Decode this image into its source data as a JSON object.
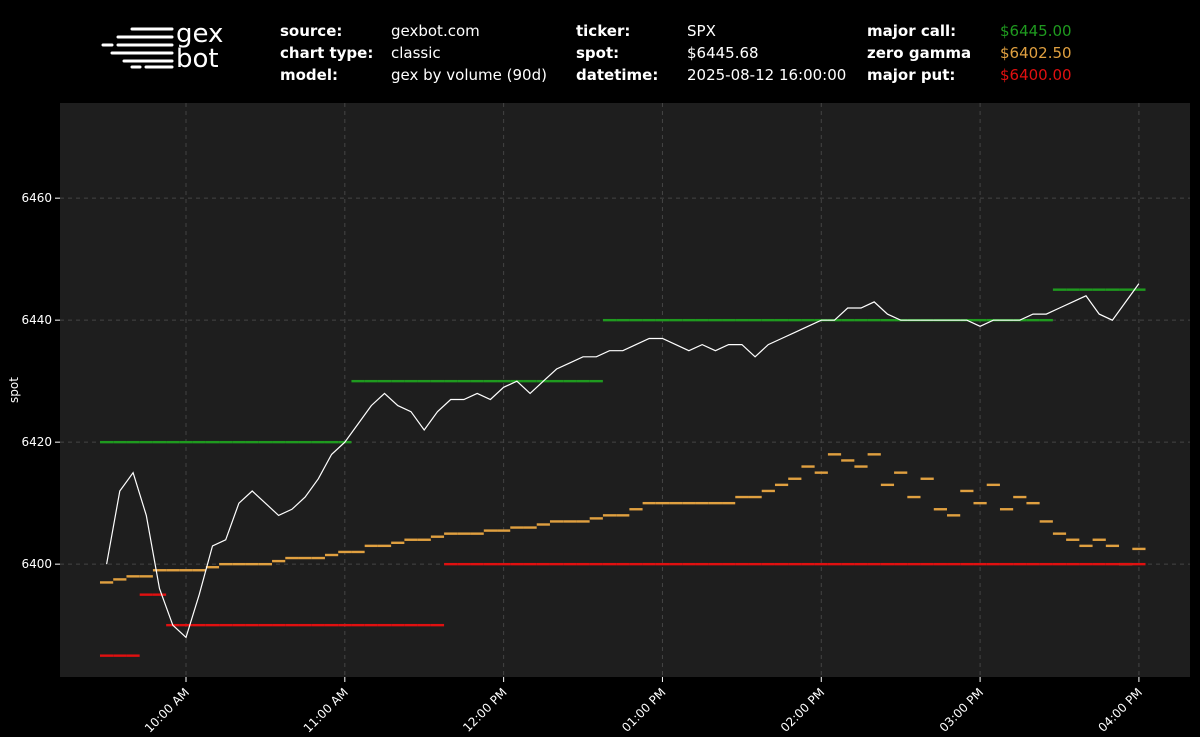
{
  "header": {
    "logo_top": "gex",
    "logo_bottom": "bot",
    "info": [
      {
        "label": "source:",
        "value": "gexbot.com"
      },
      {
        "label": "chart type:",
        "value": "classic"
      },
      {
        "label": "model:",
        "value": "gex by volume (90d)"
      },
      {
        "label": "ticker:",
        "value": "SPX"
      },
      {
        "label": "spot:",
        "value": "$6445.68"
      },
      {
        "label": "datetime:",
        "value": "2025-08-12 16:00:00"
      },
      {
        "label": "major call:",
        "value": "$6445.00",
        "color": "#1f9a1f"
      },
      {
        "label": "zero gamma",
        "value": "$6402.50",
        "color": "#e0a040"
      },
      {
        "label": "major put:",
        "value": "$6400.00",
        "color": "#e01010"
      }
    ]
  },
  "chart_data": {
    "type": "line",
    "ylabel": "spot",
    "xlim": [
      552.4,
      979.3
    ],
    "ylim": [
      6381.5,
      6475.6
    ],
    "xticks": [
      {
        "value": 600,
        "label": "10:00 AM"
      },
      {
        "value": 660,
        "label": "11:00 AM"
      },
      {
        "value": 720,
        "label": "12:00 PM"
      },
      {
        "value": 780,
        "label": "01:00 PM"
      },
      {
        "value": 840,
        "label": "02:00 PM"
      },
      {
        "value": 900,
        "label": "03:00 PM"
      },
      {
        "value": 960,
        "label": "04:00 PM"
      }
    ],
    "yticks": [
      6400,
      6420,
      6440,
      6460
    ],
    "grid": true,
    "x": [
      570,
      575,
      580,
      585,
      590,
      595,
      600,
      605,
      610,
      615,
      620,
      625,
      630,
      635,
      640,
      645,
      650,
      655,
      660,
      665,
      670,
      675,
      680,
      685,
      690,
      695,
      700,
      705,
      710,
      715,
      720,
      725,
      730,
      735,
      740,
      745,
      750,
      755,
      760,
      765,
      770,
      775,
      780,
      785,
      790,
      795,
      800,
      805,
      810,
      815,
      820,
      825,
      830,
      835,
      840,
      845,
      850,
      855,
      860,
      865,
      870,
      875,
      880,
      885,
      890,
      895,
      900,
      905,
      910,
      915,
      920,
      925,
      930,
      935,
      940,
      945,
      950,
      955,
      960
    ],
    "series": [
      {
        "name": "major call",
        "color": "#1f9a1f",
        "style": "dots",
        "values": [
          6420,
          6420,
          6420,
          6420,
          6420,
          6420,
          6420,
          6420,
          6420,
          6420,
          6420,
          6420,
          6420,
          6420,
          6420,
          6420,
          6420,
          6420,
          6420,
          6430,
          6430,
          6430,
          6430,
          6430,
          6430,
          6430,
          6430,
          6430,
          6430,
          6430,
          6430,
          6430,
          6430,
          6430,
          6430,
          6430,
          6430,
          6430,
          6440,
          6440,
          6440,
          6440,
          6440,
          6440,
          6440,
          6440,
          6440,
          6440,
          6440,
          6440,
          6440,
          6440,
          6440,
          6440,
          6440,
          6440,
          6440,
          6440,
          6440,
          6440,
          6440,
          6440,
          6440,
          6440,
          6440,
          6440,
          6440,
          6440,
          6440,
          6440,
          6440,
          6440,
          6445,
          6445,
          6445,
          6445,
          6445,
          6445,
          6445
        ]
      },
      {
        "name": "zero gamma",
        "color": "#e0a040",
        "style": "dots",
        "values": [
          6397,
          6397.5,
          6398,
          6398,
          6399,
          6399,
          6399,
          6399,
          6399.5,
          6400,
          6400,
          6400,
          6400,
          6400.5,
          6401,
          6401,
          6401,
          6401.5,
          6402,
          6402,
          6403,
          6403,
          6403.5,
          6404,
          6404,
          6404.5,
          6405,
          6405,
          6405,
          6405.5,
          6405.5,
          6406,
          6406,
          6406.5,
          6407,
          6407,
          6407,
          6407.5,
          6408,
          6408,
          6409,
          6410,
          6410,
          6410,
          6410,
          6410,
          6410,
          6410,
          6411,
          6411,
          6412,
          6413,
          6414,
          6416,
          6415,
          6418,
          6417,
          6416,
          6418,
          6413,
          6415,
          6411,
          6414,
          6409,
          6408,
          6412,
          6410,
          6413,
          6409,
          6411,
          6410,
          6407,
          6405,
          6404,
          6403,
          6404,
          6403,
          6400,
          6402.5
        ]
      },
      {
        "name": "major put",
        "color": "#e01010",
        "style": "dots",
        "values": [
          6385,
          6385,
          6385,
          6395,
          6395,
          6390,
          6390,
          6390,
          6390,
          6390,
          6390,
          6390,
          6390,
          6390,
          6390,
          6390,
          6390,
          6390,
          6390,
          6390,
          6390,
          6390,
          6390,
          6390,
          6390,
          6390,
          6400,
          6400,
          6400,
          6400,
          6400,
          6400,
          6400,
          6400,
          6400,
          6400,
          6400,
          6400,
          6400,
          6400,
          6400,
          6400,
          6400,
          6400,
          6400,
          6400,
          6400,
          6400,
          6400,
          6400,
          6400,
          6400,
          6400,
          6400,
          6400,
          6400,
          6400,
          6400,
          6400,
          6400,
          6400,
          6400,
          6400,
          6400,
          6400,
          6400,
          6400,
          6400,
          6400,
          6400,
          6400,
          6400,
          6400,
          6400,
          6400,
          6400,
          6400,
          6400,
          6400
        ]
      },
      {
        "name": "spot",
        "color": "#ffffff",
        "style": "line",
        "values": [
          6400,
          6412,
          6415,
          6408,
          6396,
          6390,
          6388,
          6395,
          6403,
          6404,
          6410,
          6412,
          6410,
          6408,
          6409,
          6411,
          6414,
          6418,
          6420,
          6423,
          6426,
          6428,
          6426,
          6425,
          6422,
          6425,
          6427,
          6427,
          6428,
          6427,
          6429,
          6430,
          6428,
          6430,
          6432,
          6433,
          6434,
          6434,
          6435,
          6435,
          6436,
          6437,
          6437,
          6436,
          6435,
          6436,
          6435,
          6436,
          6436,
          6434,
          6436,
          6437,
          6438,
          6439,
          6440,
          6440,
          6442,
          6442,
          6443,
          6441,
          6440,
          6440,
          6440,
          6440,
          6440,
          6440,
          6439,
          6440,
          6440,
          6440,
          6441,
          6441,
          6442,
          6443,
          6444,
          6441,
          6440,
          6443,
          6446
        ]
      }
    ]
  }
}
